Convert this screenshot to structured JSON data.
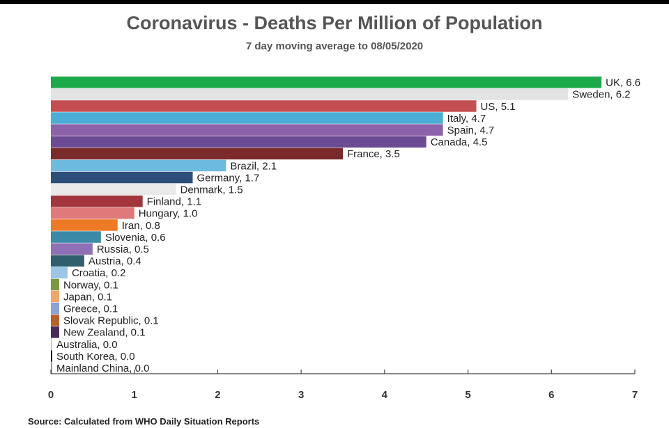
{
  "chart_data": {
    "type": "bar",
    "orientation": "horizontal",
    "title": "Coronavirus - Deaths Per Million of Population",
    "subtitle": "7 day moving average to 08/05/2020",
    "source": "Source: Calculated from WHO Daily Situation Reports",
    "xlim": [
      0,
      7
    ],
    "xticks": [
      "0",
      "1",
      "2",
      "3",
      "4",
      "5",
      "6",
      "7"
    ],
    "grid": false,
    "legend": "none",
    "bars": [
      {
        "label": "UK, 6.6",
        "value": 6.6,
        "color": "#1aaa4a"
      },
      {
        "label": "Sweden, 6.2",
        "value": 6.2,
        "color": "#e3e3e3"
      },
      {
        "label": "US, 5.1",
        "value": 5.1,
        "color": "#c44e52"
      },
      {
        "label": "Italy, 4.7",
        "value": 4.7,
        "color": "#4aaed6"
      },
      {
        "label": "Spain, 4.7",
        "value": 4.7,
        "color": "#8c63ab"
      },
      {
        "label": "Canada, 4.5",
        "value": 4.5,
        "color": "#6a4b94"
      },
      {
        "label": "France, 3.5",
        "value": 3.5,
        "color": "#7a2a2a"
      },
      {
        "label": "Brazil, 2.1",
        "value": 2.1,
        "color": "#6fbadf"
      },
      {
        "label": "Germany, 1.7",
        "value": 1.7,
        "color": "#2e4e7a"
      },
      {
        "label": "Denmark, 1.5",
        "value": 1.5,
        "color": "#e9e9e9"
      },
      {
        "label": "Finland, 1.1",
        "value": 1.1,
        "color": "#a3353d"
      },
      {
        "label": "Hungary, 1.0",
        "value": 1.0,
        "color": "#e07a7a"
      },
      {
        "label": "Iran, 0.8",
        "value": 0.8,
        "color": "#ee7a26"
      },
      {
        "label": "Slovenia, 0.6",
        "value": 0.6,
        "color": "#3a8aa8"
      },
      {
        "label": "Russia, 0.5",
        "value": 0.5,
        "color": "#8f6fb5"
      },
      {
        "label": "Austria, 0.4",
        "value": 0.4,
        "color": "#2f5e6c"
      },
      {
        "label": "Croatia, 0.2",
        "value": 0.2,
        "color": "#9cc6e6"
      },
      {
        "label": "Norway, 0.1",
        "value": 0.1,
        "color": "#7a9a3a"
      },
      {
        "label": "Japan, 0.1",
        "value": 0.1,
        "color": "#f3a56a"
      },
      {
        "label": "Greece, 0.1",
        "value": 0.1,
        "color": "#8aa3d6"
      },
      {
        "label": "Slovak Republic, 0.1",
        "value": 0.1,
        "color": "#b8602a"
      },
      {
        "label": "New Zealand, 0.1",
        "value": 0.1,
        "color": "#4a2a5a"
      },
      {
        "label": "Australia, 0.0",
        "value": 0.0,
        "color": "#cccccc"
      },
      {
        "label": "South Korea, 0.0",
        "value": 0.0,
        "color": "#1a1a1a"
      },
      {
        "label": "Mainland China, 0.0",
        "value": 0.0,
        "color": "#999999"
      }
    ]
  }
}
